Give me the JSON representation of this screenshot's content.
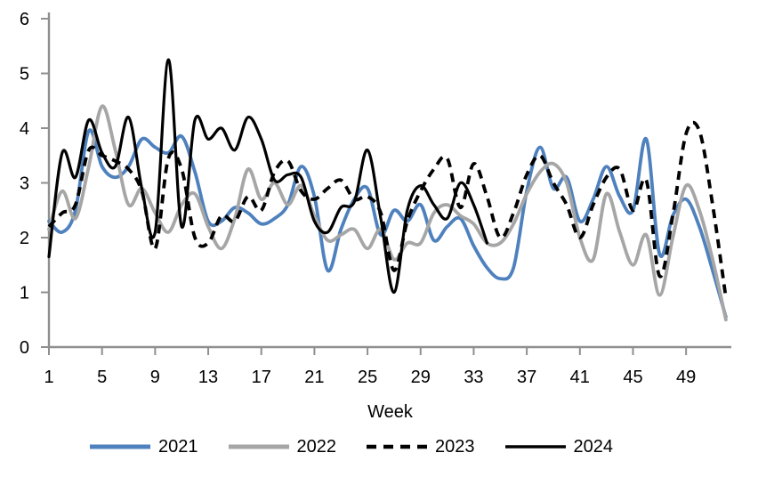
{
  "chart_data": {
    "type": "line",
    "title": "",
    "xlabel": "Week",
    "ylabel": "",
    "ylim": [
      0,
      6
    ],
    "x_range": [
      1,
      52
    ],
    "grid": false,
    "legend_position": "bottom",
    "axis_color": "#8F8F8F",
    "text_color": "#000000",
    "y_ticks": [
      0,
      1,
      2,
      3,
      4,
      5,
      6
    ],
    "x_ticks": [
      1,
      5,
      9,
      13,
      17,
      21,
      25,
      29,
      33,
      37,
      41,
      45,
      49
    ],
    "series": [
      {
        "name": "2021",
        "color": "#4E81BD",
        "style": "solid",
        "start_week": 1,
        "values": [
          2.3,
          2.1,
          2.5,
          3.95,
          3.3,
          3.1,
          3.3,
          3.8,
          3.65,
          3.55,
          3.85,
          3.2,
          2.3,
          2.3,
          2.55,
          2.45,
          2.25,
          2.35,
          2.6,
          3.3,
          2.75,
          1.4,
          2.15,
          2.7,
          2.9,
          2.05,
          2.5,
          2.3,
          2.6,
          1.95,
          2.2,
          2.35,
          1.85,
          1.45,
          1.25,
          1.45,
          2.85,
          3.65,
          2.9,
          3.1,
          2.3,
          2.7,
          3.3,
          2.75,
          2.5,
          3.8,
          1.7,
          2.4,
          2.7,
          2.2,
          1.4,
          0.55
        ]
      },
      {
        "name": "2022",
        "color": "#A6A6A6",
        "style": "solid",
        "start_week": 1,
        "values": [
          2.15,
          2.85,
          2.35,
          3.3,
          4.4,
          3.6,
          2.6,
          2.9,
          2.45,
          2.1,
          2.6,
          2.8,
          2.2,
          1.8,
          2.35,
          3.25,
          2.7,
          3.0,
          2.6,
          2.95,
          2.4,
          1.95,
          2.05,
          2.15,
          1.8,
          2.15,
          1.6,
          1.9,
          1.9,
          2.45,
          2.6,
          2.4,
          2.25,
          1.9,
          1.9,
          2.25,
          2.8,
          3.2,
          3.35,
          3.0,
          2.0,
          1.6,
          2.8,
          2.1,
          1.5,
          2.05,
          0.95,
          2.0,
          2.95,
          2.5,
          1.6,
          0.5
        ]
      },
      {
        "name": "2023",
        "color": "#000000",
        "style": "dashed",
        "start_week": 1,
        "values": [
          2.2,
          2.45,
          2.6,
          3.6,
          3.5,
          3.4,
          3.25,
          2.85,
          1.8,
          3.45,
          3.25,
          2.0,
          1.9,
          2.4,
          2.3,
          2.75,
          2.5,
          3.2,
          3.4,
          2.85,
          2.7,
          2.9,
          3.05,
          2.7,
          2.75,
          2.45,
          1.4,
          2.3,
          2.85,
          3.25,
          3.45,
          2.55,
          3.35,
          2.75,
          2.0,
          2.45,
          3.15,
          3.5,
          3.0,
          2.6,
          2.0,
          2.6,
          3.1,
          3.25,
          2.5,
          3.05,
          1.3,
          2.4,
          3.9,
          3.95,
          2.6,
          0.9
        ]
      },
      {
        "name": "2024",
        "color": "#000000",
        "style": "solid",
        "start_week": 1,
        "values": [
          1.65,
          3.55,
          3.1,
          4.15,
          3.55,
          3.3,
          4.2,
          2.9,
          2.1,
          5.25,
          2.2,
          4.15,
          3.8,
          4.0,
          3.6,
          4.2,
          3.8,
          3.05,
          3.15,
          3.1,
          2.3,
          2.1,
          2.55,
          2.65,
          3.6,
          2.35,
          1.0,
          2.5,
          2.95,
          2.6,
          2.35,
          3.0,
          2.6,
          1.9
        ]
      }
    ]
  }
}
